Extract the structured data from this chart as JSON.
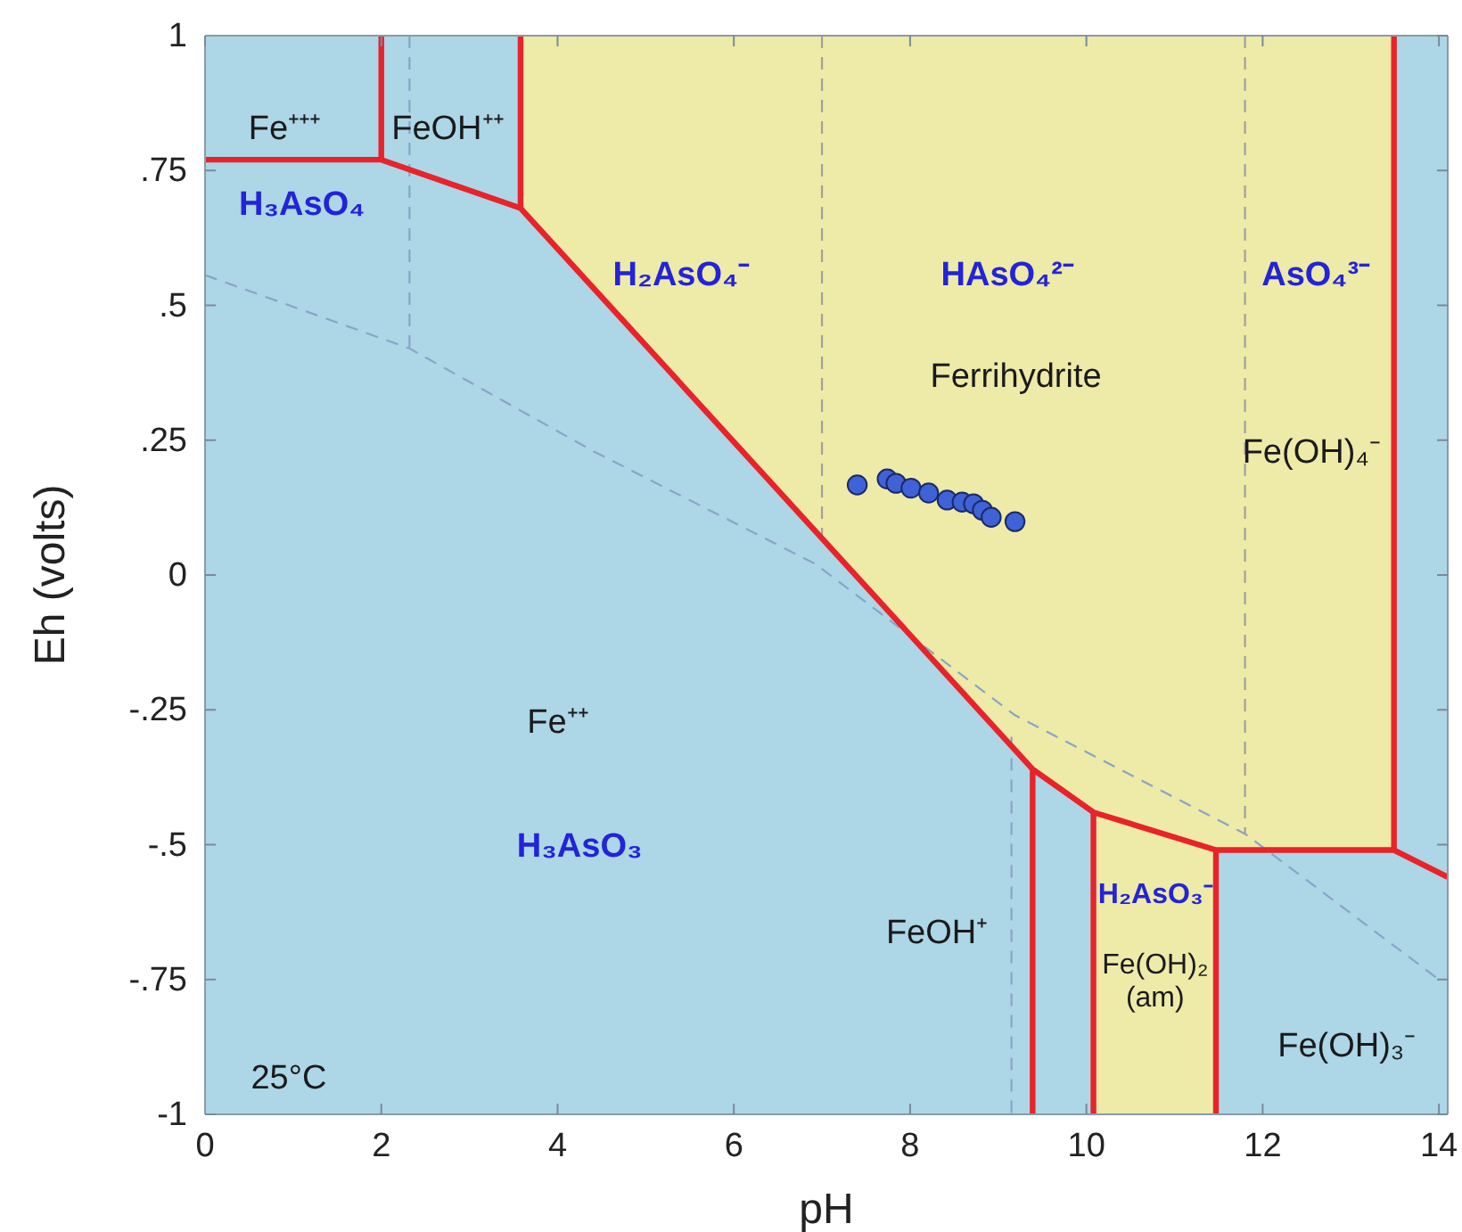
{
  "chart_data": {
    "type": "line",
    "xlabel": "pH",
    "ylabel": "Eh (volts)",
    "xlim": [
      0,
      14.1
    ],
    "xticks": [
      0,
      2,
      4,
      6,
      8,
      10,
      12,
      14
    ],
    "ylim": [
      -1,
      1
    ],
    "yticks": [
      {
        "value": -1,
        "label": "-1"
      },
      {
        "value": -0.75,
        "label": "-.75"
      },
      {
        "value": -0.5,
        "label": "-.5"
      },
      {
        "value": -0.25,
        "label": "-.25"
      },
      {
        "value": 0,
        "label": "0"
      },
      {
        "value": 0.25,
        "label": ".25"
      },
      {
        "value": 0.5,
        "label": ".5"
      },
      {
        "value": 0.75,
        "label": ".75"
      },
      {
        "value": 1,
        "label": "1"
      }
    ],
    "series": [
      {
        "line_style": "dashed",
        "color": "#8aa4c8",
        "x": [
          0,
          2.32,
          4.4,
          6.93,
          9.19,
          11.8,
          14.04
        ],
        "values": [
          0.556,
          0.42,
          0.23,
          0.02,
          -0.26,
          -0.48,
          -0.755
        ]
      },
      {
        "line_style": "dashed",
        "color": "#8aa4c8",
        "x": [
          2.32,
          2.32
        ],
        "values": [
          1,
          0.42
        ]
      },
      {
        "line_style": "dashed",
        "color": "#a0a0a0",
        "x": [
          7.0,
          7.0
        ],
        "values": [
          1,
          0.07
        ]
      },
      {
        "line_style": "dashed",
        "color": "#a0a0a0",
        "x": [
          11.8,
          11.8
        ],
        "values": [
          1,
          -0.48
        ]
      },
      {
        "line_style": "dashed",
        "color": "#8aa4c8",
        "x": [
          9.15,
          9.15
        ],
        "values": [
          -0.3,
          -1
        ]
      },
      {
        "color": "#e8232a",
        "x": [
          0,
          2,
          3.58,
          9.39,
          10.08,
          11.47,
          13.49,
          14.1
        ],
        "values": [
          0.77,
          0.77,
          0.68,
          -0.36,
          -0.44,
          -0.51,
          -0.51,
          -0.56
        ]
      },
      {
        "color": "#e8232a",
        "x": [
          2,
          2
        ],
        "values": [
          0.77,
          1
        ]
      },
      {
        "color": "#e8232a",
        "x": [
          3.58,
          3.58
        ],
        "values": [
          0.68,
          1
        ]
      },
      {
        "color": "#e8232a",
        "x": [
          13.49,
          13.49
        ],
        "values": [
          -0.51,
          1
        ]
      },
      {
        "color": "#e8232a",
        "x": [
          9.39,
          9.39
        ],
        "values": [
          -0.36,
          -1
        ]
      },
      {
        "color": "#e8232a",
        "x": [
          10.08,
          10.08
        ],
        "values": [
          -0.44,
          -1
        ]
      },
      {
        "color": "#e8232a",
        "x": [
          11.47,
          11.47
        ],
        "values": [
          -0.51,
          -1
        ]
      },
      {
        "type": "scatter",
        "marker": "circle",
        "color": "#3f62d6",
        "x": [
          7.4,
          7.74,
          7.84,
          8.01,
          8.21,
          8.42,
          8.59,
          8.72,
          8.82,
          8.92,
          9.19
        ],
        "values": [
          0.167,
          0.178,
          0.17,
          0.161,
          0.152,
          0.139,
          0.135,
          0.132,
          0.12,
          0.107,
          0.099
        ]
      }
    ],
    "annotations": [
      "Fe⁺⁺⁺",
      "FeOH⁺⁺",
      "H₃AsO₄",
      "H₂AsO₄⁻",
      "HAsO₄²⁻",
      "AsO₄³⁻",
      "Ferrihydrite",
      "Fe(OH)₄⁻",
      "Fe⁺⁺",
      "H₃AsO₃",
      "H₂AsO₃⁻",
      "FeOH⁺",
      "Fe(OH)₂ (am)",
      "Fe(OH)₃⁻",
      "25°C"
    ]
  }
}
